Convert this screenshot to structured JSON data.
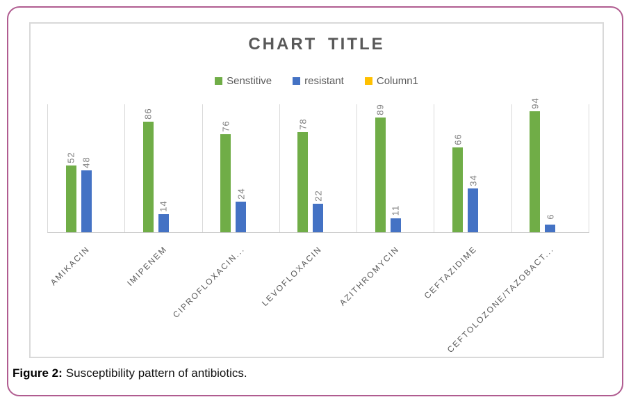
{
  "figure_caption": {
    "label": "Figure 2:",
    "text": "Susceptibility pattern of antibiotics."
  },
  "colors": {
    "sensitive_green": "#70AD47",
    "resistant_blue": "#4472C4",
    "column1_yellow": "#FFC000",
    "outer_border_pink": "#B05C90",
    "chart_border_gray": "#D9D9D9",
    "title_text_gray": "#595959",
    "value_label_gray": "#7F7F7F"
  },
  "chart_data": {
    "type": "bar",
    "title": "CHART TITLE",
    "categories": [
      "AMIKACIN",
      "IMIPENEM",
      "CIPROFLOXACIN...",
      "LEVOFLOXACIN",
      "AZITHROMYCIN",
      "CEFTAZIDIME",
      "CEFTOLOZONE/TAZOBACT..."
    ],
    "series": [
      {
        "name": "Senstitive",
        "color": "#70AD47",
        "values": [
          52,
          86,
          76,
          78,
          89,
          66,
          94
        ]
      },
      {
        "name": "resistant",
        "color": "#4472C4",
        "values": [
          48,
          14,
          24,
          22,
          11,
          34,
          6
        ]
      },
      {
        "name": "Column1",
        "color": "#FFC000",
        "values": [
          0,
          0,
          0,
          0,
          0,
          0,
          0
        ]
      }
    ],
    "ylim": [
      0,
      100
    ],
    "legend_position": "top-center",
    "grid": "vertical category separators only",
    "value_labels": "rotated 90deg above bars",
    "category_labels": "rotated 45deg"
  }
}
